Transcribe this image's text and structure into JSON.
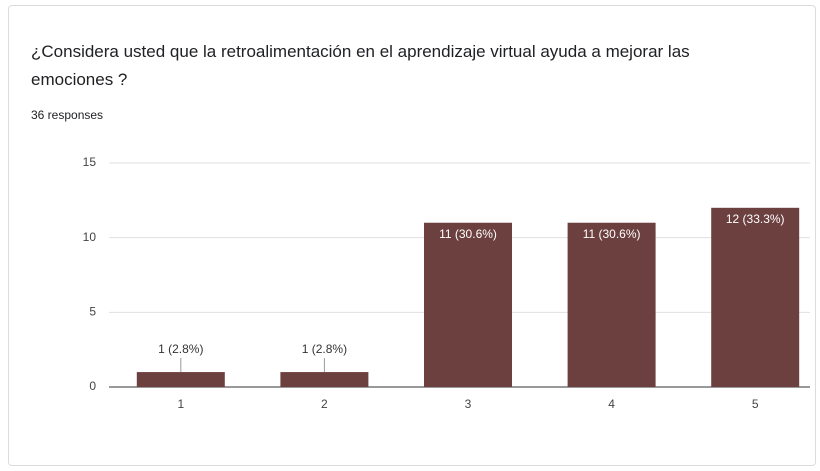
{
  "chart_data": {
    "type": "bar",
    "title": "¿Considera usted que la retroalimentación en el aprendizaje virtual ayuda a mejorar las emociones ?",
    "subtitle": "36 responses",
    "categories": [
      "1",
      "2",
      "3",
      "4",
      "5"
    ],
    "values": [
      1,
      1,
      11,
      11,
      12
    ],
    "value_labels": [
      "1 (2.8%)",
      "1 (2.8%)",
      "11 (30.6%)",
      "11 (30.6%)",
      "12 (33.3%)"
    ],
    "color": "#6d4040",
    "ylim": [
      0,
      15
    ],
    "yticks": [
      0,
      5,
      10,
      15
    ],
    "grid": true
  }
}
